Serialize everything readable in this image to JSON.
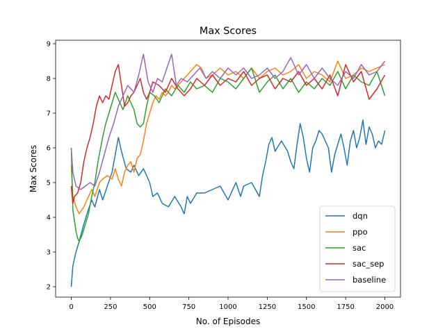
{
  "chart_data": {
    "type": "line",
    "title": "Max Scores",
    "xlabel": "No. of Episodes",
    "ylabel": "Max Scores",
    "xlim": [
      -100,
      2100
    ],
    "ylim": [
      1.7,
      9.1
    ],
    "xticks": [
      0,
      250,
      500,
      750,
      1000,
      1250,
      1500,
      1750,
      2000
    ],
    "yticks": [
      2,
      3,
      4,
      5,
      6,
      7,
      8,
      9
    ],
    "grid": false,
    "legend_position": "lower right",
    "series": [
      {
        "name": "dqn",
        "color": "#1f77b4",
        "x": [
          0,
          10,
          30,
          50,
          80,
          100,
          130,
          150,
          180,
          200,
          230,
          260,
          280,
          300,
          320,
          350,
          380,
          400,
          430,
          460,
          500,
          520,
          550,
          580,
          620,
          660,
          700,
          720,
          740,
          760,
          800,
          850,
          900,
          950,
          1000,
          1050,
          1080,
          1100,
          1150,
          1200,
          1220,
          1240,
          1260,
          1280,
          1300,
          1340,
          1380,
          1400,
          1420,
          1440,
          1460,
          1480,
          1500,
          1520,
          1540,
          1560,
          1580,
          1600,
          1620,
          1640,
          1660,
          1680,
          1700,
          1720,
          1740,
          1760,
          1780,
          1800,
          1820,
          1840,
          1860,
          1880,
          1900,
          1920,
          1940,
          1960,
          1980,
          2000
        ],
        "y": [
          2.0,
          2.6,
          3.0,
          3.3,
          3.8,
          4.1,
          4.5,
          4.3,
          4.8,
          4.5,
          4.9,
          5.3,
          5.8,
          6.3,
          5.9,
          5.4,
          5.3,
          5.5,
          5.2,
          5.4,
          5.0,
          4.6,
          4.7,
          4.4,
          4.3,
          4.6,
          4.3,
          4.1,
          4.6,
          4.4,
          4.7,
          4.7,
          4.8,
          4.9,
          4.5,
          5.0,
          4.6,
          4.9,
          5.0,
          4.6,
          5.2,
          5.6,
          6.1,
          6.3,
          5.9,
          6.2,
          5.9,
          5.6,
          5.4,
          6.1,
          6.7,
          6.3,
          5.7,
          5.3,
          6.0,
          6.2,
          6.5,
          6.4,
          6.2,
          6.0,
          5.3,
          5.8,
          6.1,
          6.4,
          6.0,
          5.5,
          6.2,
          6.5,
          6.0,
          6.3,
          6.8,
          6.1,
          6.6,
          6.4,
          6.0,
          6.2,
          6.1,
          6.5
        ]
      },
      {
        "name": "ppo",
        "color": "#ff7f0e",
        "x": [
          0,
          10,
          30,
          50,
          80,
          100,
          130,
          150,
          180,
          200,
          230,
          260,
          280,
          300,
          320,
          340,
          360,
          380,
          400,
          420,
          440,
          460,
          480,
          500,
          520,
          540,
          560,
          580,
          600,
          620,
          640,
          660,
          700,
          740,
          780,
          800,
          830,
          860,
          900,
          950,
          1000,
          1050,
          1100,
          1150,
          1200,
          1250,
          1300,
          1350,
          1400,
          1450,
          1500,
          1550,
          1600,
          1650,
          1700,
          1750,
          1800,
          1850,
          1900,
          1950,
          2000
        ],
        "y": [
          5.5,
          4.6,
          4.3,
          4.1,
          4.3,
          4.5,
          4.8,
          4.6,
          5.0,
          5.1,
          5.2,
          5.1,
          5.4,
          5.1,
          4.9,
          5.3,
          5.5,
          5.6,
          5.3,
          5.7,
          5.8,
          6.2,
          6.7,
          7.0,
          7.3,
          7.5,
          7.4,
          7.6,
          7.5,
          7.6,
          7.8,
          7.7,
          7.9,
          8.1,
          8.3,
          8.4,
          8.3,
          8.0,
          8.1,
          8.3,
          8.1,
          8.2,
          8.0,
          8.3,
          8.0,
          8.2,
          8.3,
          8.1,
          8.2,
          8.4,
          8.0,
          8.2,
          8.1,
          7.9,
          8.5,
          8.0,
          8.1,
          8.3,
          8.2,
          8.3,
          8.4
        ]
      },
      {
        "name": "sac",
        "color": "#2ca02c",
        "x": [
          0,
          10,
          20,
          30,
          40,
          50,
          70,
          90,
          110,
          130,
          150,
          170,
          200,
          220,
          240,
          260,
          280,
          300,
          330,
          360,
          380,
          400,
          420,
          440,
          460,
          480,
          500,
          530,
          560,
          600,
          640,
          680,
          720,
          760,
          800,
          850,
          900,
          950,
          1000,
          1050,
          1100,
          1150,
          1200,
          1250,
          1300,
          1350,
          1400,
          1450,
          1500,
          1550,
          1600,
          1650,
          1700,
          1750,
          1800,
          1850,
          1900,
          1950,
          2000
        ],
        "y": [
          6.0,
          4.2,
          3.9,
          3.6,
          3.4,
          3.3,
          3.5,
          3.8,
          4.1,
          4.6,
          5.0,
          5.6,
          6.3,
          6.7,
          7.0,
          7.3,
          7.6,
          7.4,
          7.1,
          7.5,
          7.3,
          7.1,
          6.7,
          6.6,
          6.7,
          7.2,
          7.6,
          7.5,
          7.3,
          7.7,
          7.5,
          7.8,
          7.6,
          7.9,
          7.7,
          7.8,
          7.6,
          8.0,
          7.9,
          7.7,
          8.0,
          8.3,
          7.6,
          7.9,
          8.1,
          7.7,
          8.0,
          7.6,
          7.9,
          7.7,
          8.0,
          7.8,
          8.2,
          7.7,
          8.1,
          7.9,
          7.8,
          8.2,
          7.5
        ]
      },
      {
        "name": "sac_sep",
        "color": "#d62728",
        "x": [
          0,
          10,
          20,
          40,
          60,
          80,
          100,
          120,
          140,
          160,
          180,
          200,
          220,
          240,
          260,
          280,
          300,
          320,
          340,
          360,
          380,
          400,
          420,
          440,
          460,
          480,
          500,
          520,
          560,
          600,
          640,
          680,
          720,
          760,
          800,
          850,
          900,
          950,
          1000,
          1050,
          1100,
          1150,
          1200,
          1250,
          1300,
          1350,
          1400,
          1450,
          1500,
          1550,
          1600,
          1650,
          1700,
          1750,
          1800,
          1850,
          1900,
          1950,
          2000
        ],
        "y": [
          4.9,
          4.4,
          4.6,
          4.7,
          5.0,
          5.6,
          6.0,
          6.3,
          6.7,
          7.2,
          7.5,
          7.3,
          7.5,
          7.4,
          7.8,
          8.2,
          8.4,
          7.8,
          7.2,
          7.3,
          7.5,
          7.6,
          7.8,
          8.0,
          7.6,
          7.4,
          7.6,
          7.9,
          7.8,
          7.6,
          8.0,
          7.7,
          7.5,
          7.7,
          8.0,
          7.8,
          8.1,
          7.8,
          8.0,
          7.9,
          8.2,
          7.8,
          8.0,
          8.1,
          7.7,
          8.0,
          7.9,
          8.2,
          7.8,
          8.0,
          7.7,
          8.1,
          7.5,
          8.4,
          7.9,
          8.2,
          7.4,
          7.7,
          8.1
        ]
      },
      {
        "name": "baseline",
        "color": "#9467bd",
        "x": [
          0,
          10,
          30,
          60,
          90,
          120,
          150,
          180,
          210,
          240,
          270,
          300,
          330,
          360,
          400,
          430,
          460,
          490,
          520,
          550,
          580,
          610,
          640,
          670,
          700,
          740,
          780,
          820,
          860,
          900,
          950,
          1000,
          1050,
          1100,
          1150,
          1200,
          1250,
          1300,
          1350,
          1400,
          1450,
          1500,
          1550,
          1600,
          1650,
          1700,
          1750,
          1800,
          1850,
          1900,
          1950,
          2000
        ],
        "y": [
          6.0,
          5.3,
          4.9,
          4.8,
          4.9,
          5.0,
          4.9,
          5.3,
          5.8,
          6.3,
          6.7,
          7.2,
          7.5,
          7.8,
          7.6,
          8.1,
          8.7,
          7.9,
          7.6,
          8.0,
          7.9,
          8.3,
          8.7,
          7.8,
          8.0,
          7.9,
          8.1,
          8.3,
          8.0,
          8.2,
          8.0,
          8.3,
          8.1,
          8.3,
          8.0,
          8.1,
          8.3,
          8.0,
          8.2,
          8.6,
          8.1,
          8.4,
          8.0,
          8.3,
          8.0,
          7.8,
          8.2,
          8.0,
          8.4,
          8.1,
          8.2,
          8.5
        ]
      }
    ]
  }
}
